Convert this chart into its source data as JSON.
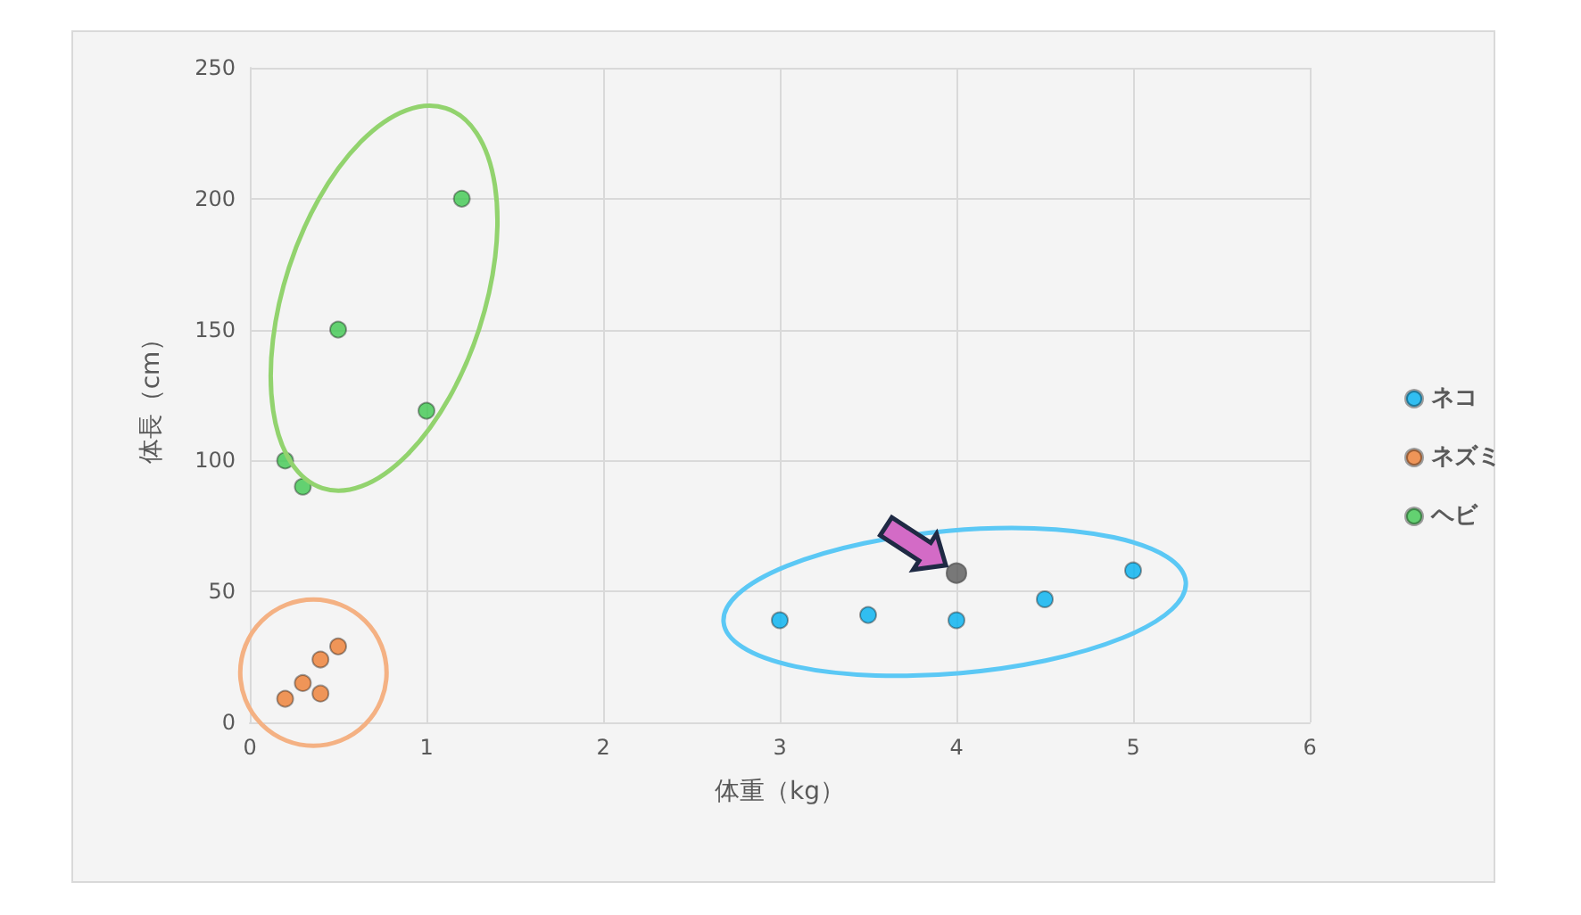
{
  "chart_data": {
    "type": "scatter",
    "xlabel": "体重（kg）",
    "ylabel": "体長（cm）",
    "xlim": [
      0,
      6
    ],
    "xticks": [
      0,
      1,
      2,
      3,
      4,
      5,
      6
    ],
    "ylim": [
      0,
      250
    ],
    "yticks": [
      0,
      50,
      100,
      150,
      200,
      250
    ],
    "grid": true,
    "legend": "right",
    "marker": "circle",
    "series": [
      {
        "name": "ネコ",
        "color": "#00b0f0",
        "x": [
          3,
          3.5,
          4,
          4.5,
          5
        ],
        "values": [
          39,
          41,
          39,
          47,
          58
        ]
      },
      {
        "name": "ネズミ",
        "color": "#ed7d31",
        "x": [
          0.2,
          0.3,
          0.4,
          0.4,
          0.5
        ],
        "values": [
          9,
          15,
          11,
          24,
          29
        ]
      },
      {
        "name": "ヘビ",
        "color": "#3fc850",
        "x": [
          0.2,
          0.3,
          0.5,
          1,
          1.2
        ],
        "values": [
          100,
          90,
          150,
          119,
          200
        ]
      },
      {
        "color": "#595959",
        "x": [
          4
        ],
        "values": [
          57
        ]
      }
    ]
  }
}
